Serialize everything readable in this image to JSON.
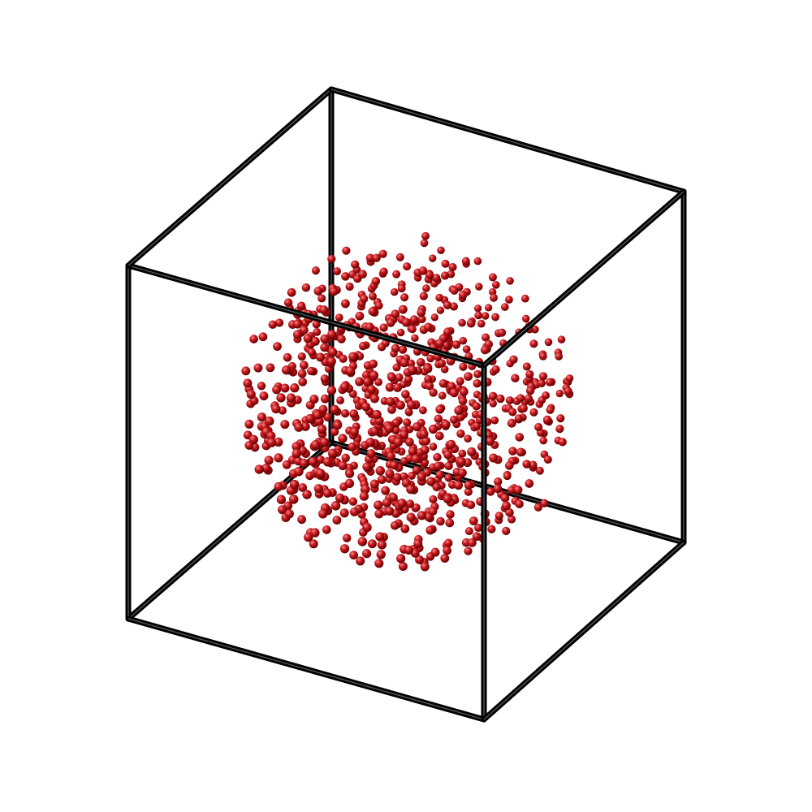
{
  "diagram": {
    "kind": "3d-particle-box",
    "box": {
      "edge_color": "#000000",
      "edge_count": 12
    },
    "particles": {
      "color": "#c8171c",
      "highlight": "#f08a8a",
      "shadow": "#5a0000",
      "distribution": "uniform-random-in-sphere"
    },
    "background": "#ffffff"
  }
}
